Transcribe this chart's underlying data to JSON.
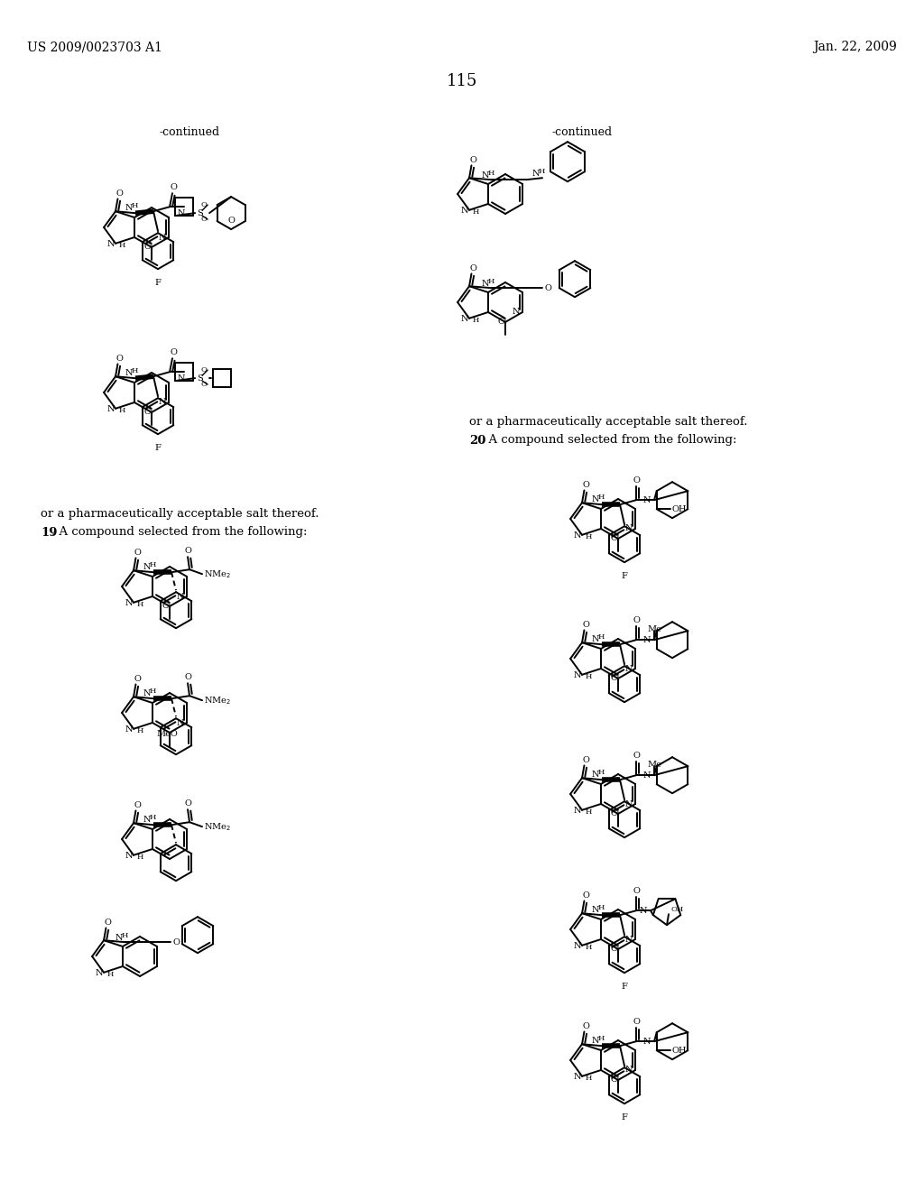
{
  "bg": "#ffffff",
  "patent": "US 2009/0023703 A1",
  "date": "Jan. 22, 2009",
  "page": "115",
  "continued": "-continued",
  "left_salt": "or a pharmaceutically acceptable salt thereof.",
  "left_claim": "19",
  "left_claim_text": ". A compound selected from the following:",
  "right_salt": "or a pharmaceutically acceptable salt thereof.",
  "right_claim": "20",
  "right_claim_text": ". A compound selected from the following:"
}
